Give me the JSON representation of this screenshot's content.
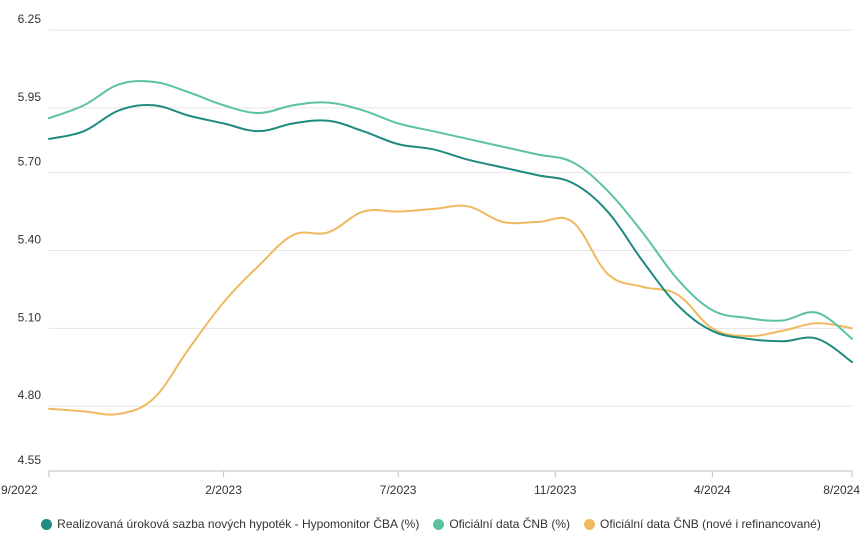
{
  "chart_data": {
    "type": "line",
    "title": "",
    "xlabel": "",
    "ylabel": "",
    "ylim": [
      4.55,
      6.25
    ],
    "xlim": [
      0,
      23
    ],
    "y_ticks": [
      "4.55",
      "4.80",
      "5.10",
      "5.40",
      "5.70",
      "5.95",
      "6.25"
    ],
    "y_tick_values": [
      4.55,
      4.8,
      5.1,
      5.4,
      5.7,
      5.95,
      6.25
    ],
    "x_ticks": [
      "9/2022",
      "2/2023",
      "7/2023",
      "11/2023",
      "4/2024",
      "8/2024"
    ],
    "x_tick_values": [
      0,
      5,
      10,
      14.5,
      19,
      23
    ],
    "x": [
      0,
      1,
      2,
      3,
      4,
      5,
      6,
      7,
      8,
      9,
      10,
      11,
      12,
      13,
      14,
      15,
      16,
      17,
      18,
      19,
      20,
      21,
      22,
      23
    ],
    "series": [
      {
        "name": "Realizovaná úroková sazba nových hypoték - Hypomonitor ČBA (%)",
        "color": "#1f8a80",
        "values": [
          5.83,
          5.86,
          5.94,
          5.96,
          5.92,
          5.89,
          5.86,
          5.89,
          5.9,
          5.86,
          5.81,
          5.79,
          5.75,
          5.72,
          5.69,
          5.66,
          5.55,
          5.36,
          5.19,
          5.09,
          5.06,
          5.05,
          5.06,
          4.97
        ]
      },
      {
        "name": "Oficiální data ČNB (%)",
        "color": "#5cc2a2",
        "values": [
          5.91,
          5.96,
          6.04,
          6.05,
          6.01,
          5.96,
          5.93,
          5.96,
          5.97,
          5.94,
          5.89,
          5.86,
          5.83,
          5.8,
          5.77,
          5.74,
          5.63,
          5.47,
          5.29,
          5.17,
          5.14,
          5.13,
          5.16,
          5.06
        ]
      },
      {
        "name": "Oficiální data ČNB (nové i refinancované)",
        "color": "#f0b95f",
        "values": [
          4.79,
          4.78,
          4.77,
          4.83,
          5.02,
          5.2,
          5.34,
          5.46,
          5.47,
          5.55,
          5.55,
          5.56,
          5.57,
          5.51,
          5.51,
          5.51,
          5.31,
          5.26,
          5.23,
          5.1,
          5.07,
          5.09,
          5.12,
          5.1
        ]
      }
    ],
    "legend": "bottom-center"
  }
}
